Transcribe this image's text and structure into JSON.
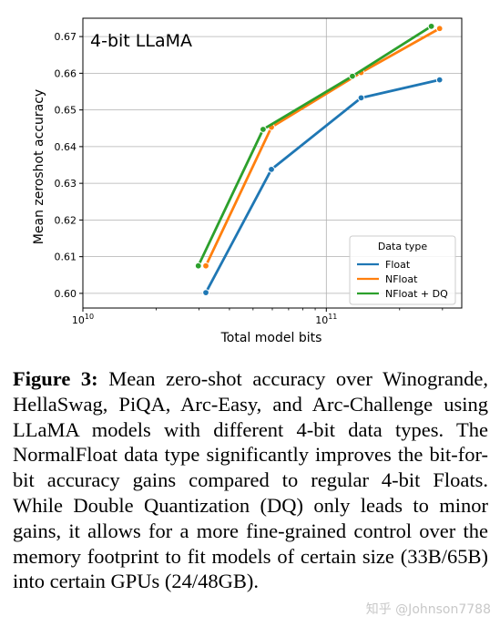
{
  "chart_data": {
    "type": "line",
    "title": "4-bit LLaMA",
    "xlabel": "Total model bits",
    "ylabel": "Mean zeroshot accuracy",
    "x_scale": "log",
    "xlim": [
      10000000000.0,
      360000000000.0
    ],
    "ylim": [
      0.596,
      0.675
    ],
    "x_ticks": [
      {
        "value": 10000000000.0,
        "base": "10",
        "exp": "10"
      },
      {
        "value": 100000000000.0,
        "base": "10",
        "exp": "11"
      }
    ],
    "y_ticks": [
      0.6,
      0.61,
      0.62,
      0.63,
      0.64,
      0.65,
      0.66,
      0.67
    ],
    "y_tick_labels": [
      "0.60",
      "0.61",
      "0.62",
      "0.63",
      "0.64",
      "0.65",
      "0.66",
      "0.67"
    ],
    "grid": true,
    "legend": {
      "title": "Data type",
      "placement": "lower-right"
    },
    "series": [
      {
        "name": "Float",
        "color": "#1f77b4",
        "points": [
          [
            32000000000.0,
            0.6002
          ],
          [
            59500000000.0,
            0.6338
          ],
          [
            139000000000.0,
            0.6533
          ],
          [
            292000000000.0,
            0.6582
          ]
        ]
      },
      {
        "name": "NFloat",
        "color": "#ff7f0e",
        "points": [
          [
            32000000000.0,
            0.6075
          ],
          [
            59500000000.0,
            0.6453
          ],
          [
            139000000000.0,
            0.6602
          ],
          [
            292000000000.0,
            0.6722
          ]
        ]
      },
      {
        "name": "NFloat + DQ",
        "color": "#2ca02c",
        "points": [
          [
            29800000000.0,
            0.6075
          ],
          [
            55000000000.0,
            0.6447
          ],
          [
            128000000000.0,
            0.6592
          ],
          [
            270000000000.0,
            0.6728
          ]
        ]
      }
    ]
  },
  "caption": {
    "label": "Figure 3:",
    "text": " Mean zero-shot accuracy over Winogrande, HellaSwag, PiQA, Arc-Easy, and Arc-Challenge using LLaMA models with different 4-bit data types. The NormalFloat data type significantly improves the bit-for-bit accuracy gains compared to regular 4-bit Floats. While Double Quantization (DQ) only leads to minor gains, it allows for a more fine-grained control over the memory footprint to fit models of certain size (33B/65B) into certain GPUs (24/48GB)."
  },
  "watermark": "知乎 @Johnson7788"
}
